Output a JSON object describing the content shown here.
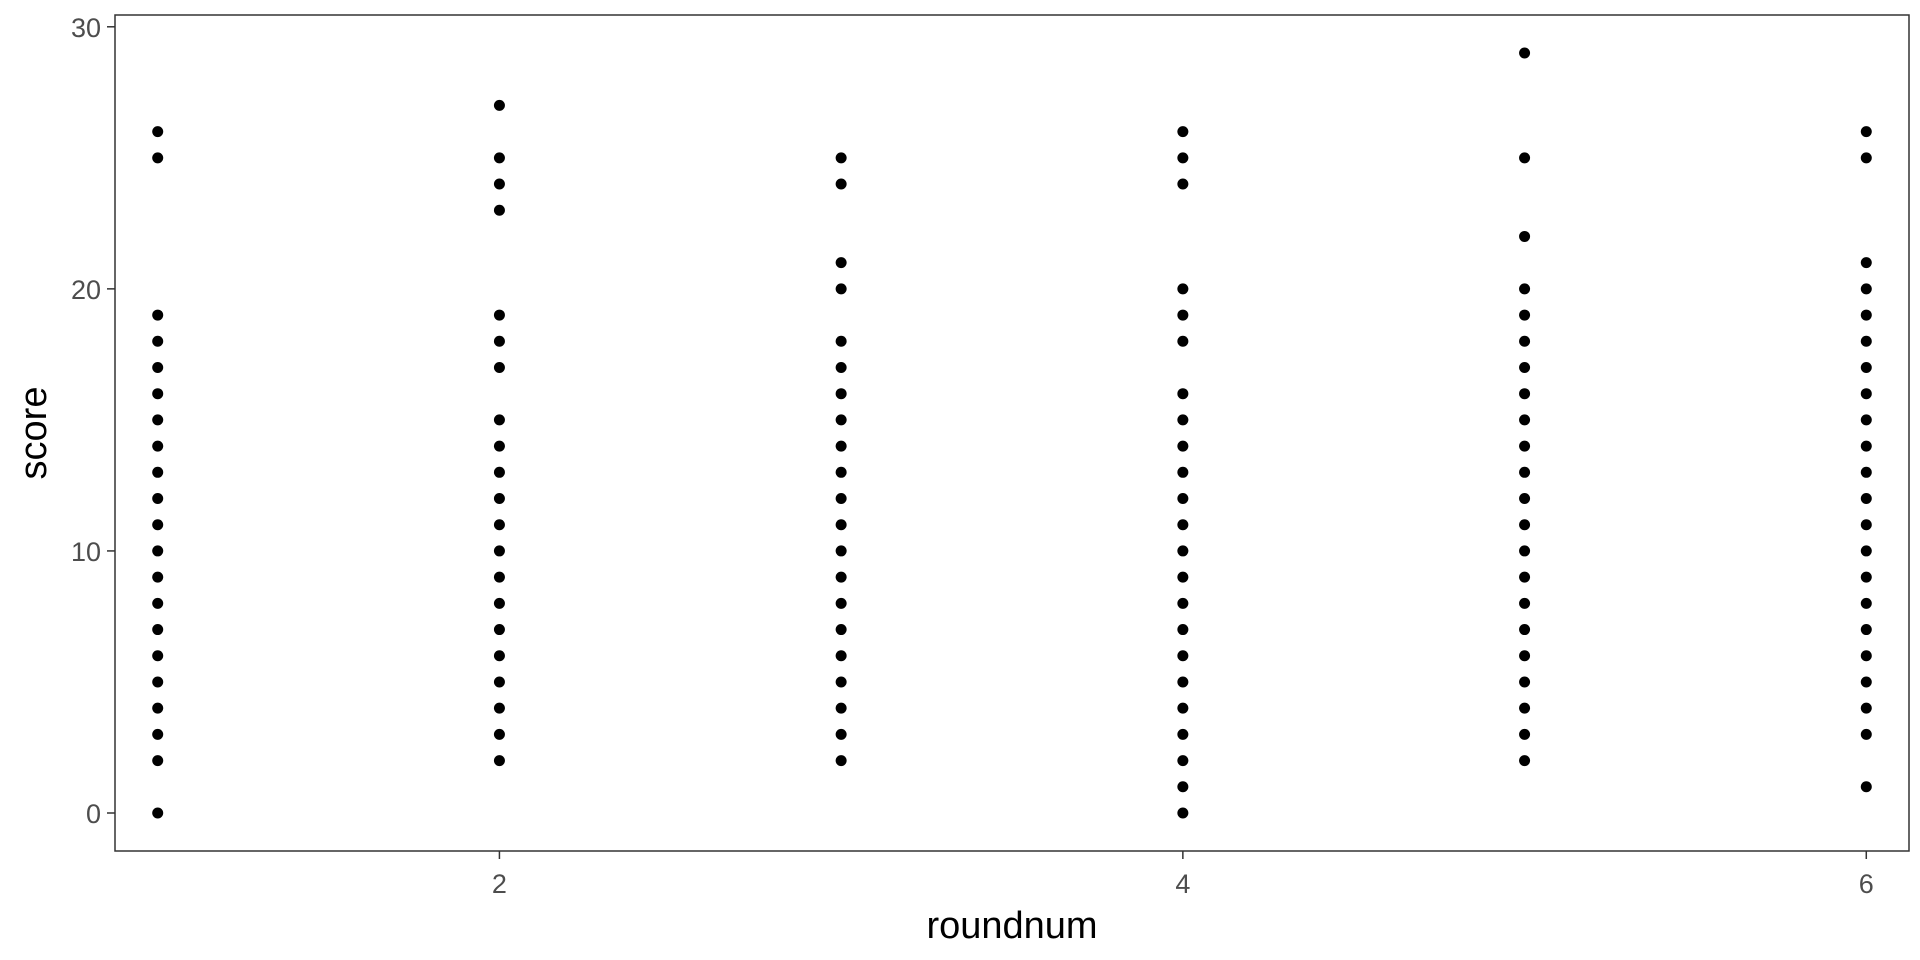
{
  "chart_data": {
    "type": "scatter",
    "title": "",
    "xlabel": "roundnum",
    "ylabel": "score",
    "xlim": [
      0.875,
      6.125
    ],
    "ylim": [
      -1.45,
      30.45
    ],
    "x_ticks": [
      2,
      4,
      6
    ],
    "x_tick_labels": [
      "2",
      "4",
      "6"
    ],
    "y_ticks": [
      0,
      10,
      20,
      30
    ],
    "y_tick_labels": [
      "0",
      "10",
      "20",
      "30"
    ],
    "grid": false,
    "legend": "none",
    "point_color": "#000000",
    "series": [
      {
        "points": [
          {
            "x": 1,
            "y": [
              0,
              2,
              3,
              4,
              5,
              6,
              7,
              8,
              9,
              10,
              11,
              12,
              13,
              14,
              15,
              16,
              17,
              18,
              19,
              25,
              26
            ]
          },
          {
            "x": 2,
            "y": [
              2,
              3,
              4,
              5,
              6,
              7,
              8,
              9,
              10,
              11,
              12,
              13,
              14,
              15,
              17,
              18,
              19,
              23,
              24,
              25,
              27
            ]
          },
          {
            "x": 3,
            "y": [
              2,
              3,
              4,
              5,
              6,
              7,
              8,
              9,
              10,
              11,
              12,
              13,
              14,
              15,
              16,
              17,
              18,
              20,
              21,
              24,
              25
            ]
          },
          {
            "x": 4,
            "y": [
              0,
              1,
              2,
              3,
              4,
              5,
              6,
              7,
              8,
              9,
              10,
              11,
              12,
              13,
              14,
              15,
              16,
              18,
              19,
              20,
              24,
              25,
              26
            ]
          },
          {
            "x": 5,
            "y": [
              2,
              3,
              4,
              5,
              6,
              7,
              8,
              9,
              10,
              11,
              12,
              13,
              14,
              15,
              16,
              17,
              18,
              19,
              20,
              22,
              25,
              29
            ]
          },
          {
            "x": 6,
            "y": [
              1,
              3,
              4,
              5,
              6,
              7,
              8,
              9,
              10,
              11,
              12,
              13,
              14,
              15,
              16,
              17,
              18,
              19,
              20,
              21,
              25,
              26
            ]
          }
        ]
      }
    ]
  }
}
